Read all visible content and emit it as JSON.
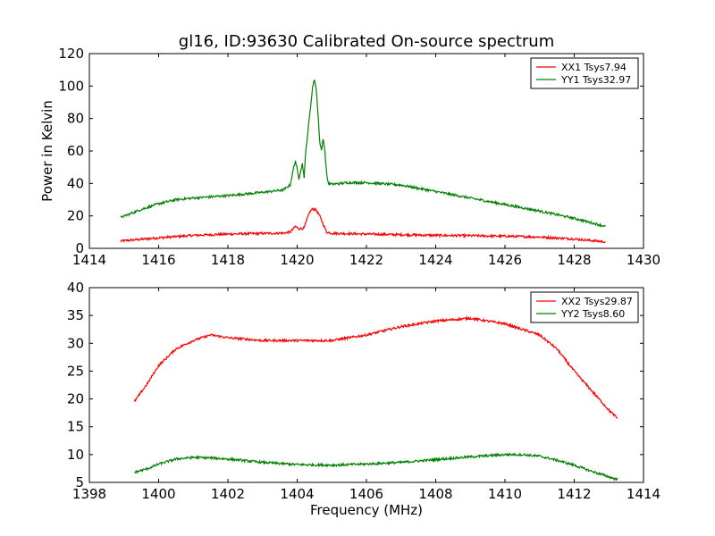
{
  "chart_data": [
    {
      "type": "line",
      "title": "gl16, ID:93630 Calibrated On-source spectrum",
      "xlabel": "",
      "ylabel": "Power in Kelvin",
      "xlim": [
        1414,
        1430
      ],
      "ylim": [
        0,
        120
      ],
      "xticks": [
        1414,
        1416,
        1418,
        1420,
        1422,
        1424,
        1426,
        1428,
        1430
      ],
      "yticks": [
        0,
        20,
        40,
        60,
        80,
        100,
        120
      ],
      "legend_position": "top-right",
      "series": [
        {
          "name": "XX1 Tsys7.94",
          "color": "#ff0000",
          "x": [
            1414.9,
            1416.0,
            1417.0,
            1418.0,
            1419.0,
            1419.6,
            1419.8,
            1419.95,
            1420.05,
            1420.2,
            1420.35,
            1420.45,
            1420.55,
            1420.65,
            1420.75,
            1420.85,
            1421.0,
            1422.0,
            1423.0,
            1424.0,
            1425.0,
            1426.0,
            1427.0,
            1428.0,
            1428.9
          ],
          "y": [
            4.5,
            6.5,
            8,
            8.8,
            9.2,
            9.4,
            10,
            13.5,
            12,
            12.5,
            22,
            24.5,
            23.5,
            20,
            15,
            10,
            9.3,
            8.8,
            8.4,
            8.0,
            7.8,
            7.5,
            7.0,
            5.8,
            4.0
          ]
        },
        {
          "name": "YY1 Tsys32.97",
          "color": "#008000",
          "x": [
            1414.9,
            1415.5,
            1416.0,
            1416.5,
            1417.0,
            1418.0,
            1419.0,
            1419.6,
            1419.8,
            1419.9,
            1419.95,
            1420.05,
            1420.1,
            1420.15,
            1420.2,
            1420.25,
            1420.35,
            1420.45,
            1420.5,
            1420.55,
            1420.6,
            1420.65,
            1420.7,
            1420.75,
            1420.8,
            1420.85,
            1420.9,
            1421.0,
            1421.5,
            1422.0,
            1423.0,
            1424.0,
            1425.0,
            1426.0,
            1427.0,
            1428.0,
            1428.9
          ],
          "y": [
            19,
            24,
            27.5,
            30,
            31,
            32.5,
            34.5,
            36,
            39,
            50,
            54,
            43,
            48,
            52,
            44,
            60,
            80,
            100,
            104,
            98,
            84,
            66,
            60,
            68,
            60,
            46,
            40,
            39.5,
            40.5,
            40.5,
            39,
            35,
            31,
            27,
            23,
            18.5,
            13.5
          ]
        }
      ]
    },
    {
      "type": "line",
      "title": "",
      "xlabel": "Frequency (MHz)",
      "ylabel": "",
      "xlim": [
        1398,
        1414
      ],
      "ylim": [
        5,
        40
      ],
      "xticks": [
        1398,
        1400,
        1402,
        1404,
        1406,
        1408,
        1410,
        1412,
        1414
      ],
      "yticks": [
        5,
        10,
        15,
        20,
        25,
        30,
        35,
        40
      ],
      "legend_position": "top-right",
      "series": [
        {
          "name": "XX2 Tsys29.87",
          "color": "#ff0000",
          "x": [
            1399.3,
            1399.7,
            1400.0,
            1400.5,
            1401.0,
            1401.5,
            1402.0,
            1403.0,
            1404.0,
            1405.0,
            1406.0,
            1407.0,
            1408.0,
            1409.0,
            1410.0,
            1411.0,
            1411.5,
            1412.0,
            1412.5,
            1413.0,
            1413.25
          ],
          "y": [
            19.5,
            23,
            26,
            29,
            30.5,
            31.5,
            31,
            30.5,
            30.5,
            30.5,
            31.5,
            33,
            34,
            34.5,
            33.5,
            31.5,
            29,
            25,
            21.5,
            18,
            16.5
          ]
        },
        {
          "name": "YY2 Tsys8.60",
          "color": "#008000",
          "x": [
            1399.3,
            1399.7,
            1400.0,
            1400.5,
            1401.0,
            1401.5,
            1402.0,
            1403.0,
            1404.0,
            1405.0,
            1406.0,
            1407.0,
            1408.0,
            1409.0,
            1410.0,
            1410.5,
            1411.0,
            1411.5,
            1412.0,
            1412.5,
            1413.0,
            1413.25
          ],
          "y": [
            6.8,
            7.5,
            8.3,
            9.2,
            9.5,
            9.4,
            9.2,
            8.6,
            8.2,
            8.1,
            8.3,
            8.6,
            9.1,
            9.6,
            10,
            10,
            9.7,
            9.0,
            8.1,
            7.0,
            6.0,
            5.5
          ]
        }
      ]
    }
  ]
}
